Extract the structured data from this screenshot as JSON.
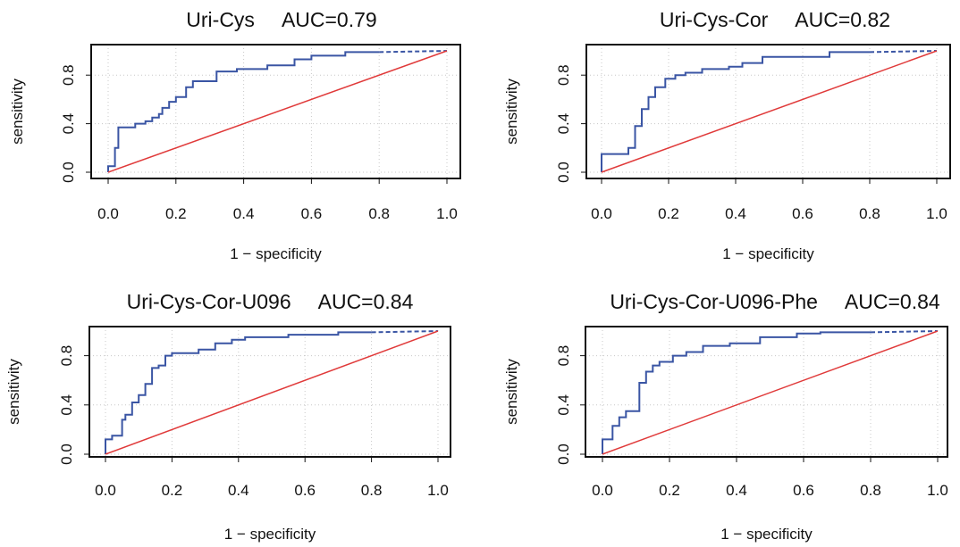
{
  "chart_data": [
    {
      "type": "line",
      "title": "Uri-Cys",
      "auc_label": "AUC=0.79",
      "xlabel": "1 − specificity",
      "ylabel": "sensitivity",
      "xlim": [
        0,
        1
      ],
      "ylim": [
        0,
        1
      ],
      "x_ticks": [
        "0.0",
        "0.2",
        "0.4",
        "0.6",
        "0.8",
        "1.0"
      ],
      "y_ticks": [
        "0.0",
        "0.4",
        "0.8"
      ],
      "grid": true,
      "series": [
        {
          "style": "roc",
          "color": "#3a55a4",
          "x": [
            0,
            0,
            0.02,
            0.02,
            0.03,
            0.03,
            0.08,
            0.08,
            0.11,
            0.11,
            0.13,
            0.13,
            0.15,
            0.15,
            0.16,
            0.16,
            0.18,
            0.18,
            0.2,
            0.2,
            0.23,
            0.23,
            0.25,
            0.25,
            0.28,
            0.28,
            0.32,
            0.32,
            0.38,
            0.38,
            0.47,
            0.47,
            0.55,
            0.55,
            0.6,
            0.6,
            0.7,
            0.7,
            0.8
          ],
          "y": [
            0,
            0.05,
            0.05,
            0.2,
            0.2,
            0.37,
            0.37,
            0.4,
            0.4,
            0.42,
            0.42,
            0.45,
            0.45,
            0.48,
            0.48,
            0.53,
            0.53,
            0.58,
            0.58,
            0.62,
            0.62,
            0.7,
            0.7,
            0.75,
            0.75,
            0.75,
            0.75,
            0.83,
            0.83,
            0.85,
            0.85,
            0.88,
            0.88,
            0.93,
            0.93,
            0.96,
            0.96,
            0.99,
            0.99
          ]
        },
        {
          "style": "dashed",
          "color": "#3a55a4",
          "x": [
            0.8,
            1.0
          ],
          "y": [
            0.99,
            1.0
          ]
        },
        {
          "style": "reference",
          "color": "#e03a3a",
          "x": [
            0,
            1
          ],
          "y": [
            0,
            1
          ]
        }
      ]
    },
    {
      "type": "line",
      "title": "Uri-Cys-Cor",
      "auc_label": "AUC=0.82",
      "xlabel": "1 − specificity",
      "ylabel": "sensitivity",
      "xlim": [
        0,
        1
      ],
      "ylim": [
        0,
        1
      ],
      "x_ticks": [
        "0.0",
        "0.2",
        "0.4",
        "0.6",
        "0.8",
        "1.0"
      ],
      "y_ticks": [
        "0.0",
        "0.4",
        "0.8"
      ],
      "grid": true,
      "series": [
        {
          "style": "roc",
          "color": "#3a55a4",
          "x": [
            0,
            0,
            0.08,
            0.08,
            0.1,
            0.1,
            0.12,
            0.12,
            0.14,
            0.14,
            0.16,
            0.16,
            0.19,
            0.19,
            0.22,
            0.22,
            0.25,
            0.25,
            0.3,
            0.3,
            0.38,
            0.38,
            0.42,
            0.42,
            0.48,
            0.48,
            0.68,
            0.68,
            0.8
          ],
          "y": [
            0,
            0.15,
            0.15,
            0.2,
            0.2,
            0.38,
            0.38,
            0.52,
            0.52,
            0.62,
            0.62,
            0.7,
            0.7,
            0.77,
            0.77,
            0.8,
            0.8,
            0.82,
            0.82,
            0.85,
            0.85,
            0.87,
            0.87,
            0.9,
            0.9,
            0.95,
            0.95,
            0.99,
            0.99
          ]
        },
        {
          "style": "dashed",
          "color": "#3a55a4",
          "x": [
            0.8,
            1.0
          ],
          "y": [
            0.99,
            1.0
          ]
        },
        {
          "style": "reference",
          "color": "#e03a3a",
          "x": [
            0,
            1
          ],
          "y": [
            0,
            1
          ]
        }
      ]
    },
    {
      "type": "line",
      "title": "Uri-Cys-Cor-U096",
      "auc_label": "AUC=0.84",
      "xlabel": "1 − specificity",
      "ylabel": "sensitivity",
      "xlim": [
        0,
        1
      ],
      "ylim": [
        0,
        1
      ],
      "x_ticks": [
        "0.0",
        "0.2",
        "0.4",
        "0.6",
        "0.8",
        "1.0"
      ],
      "y_ticks": [
        "0.0",
        "0.4",
        "0.8"
      ],
      "grid": true,
      "series": [
        {
          "style": "roc",
          "color": "#3a55a4",
          "x": [
            0,
            0,
            0.02,
            0.02,
            0.05,
            0.05,
            0.06,
            0.06,
            0.08,
            0.08,
            0.1,
            0.1,
            0.12,
            0.12,
            0.14,
            0.14,
            0.16,
            0.16,
            0.18,
            0.18,
            0.2,
            0.2,
            0.28,
            0.28,
            0.33,
            0.33,
            0.38,
            0.38,
            0.42,
            0.42,
            0.55,
            0.55,
            0.7,
            0.7,
            0.8
          ],
          "y": [
            0,
            0.12,
            0.12,
            0.15,
            0.15,
            0.28,
            0.28,
            0.32,
            0.32,
            0.42,
            0.42,
            0.48,
            0.48,
            0.57,
            0.57,
            0.7,
            0.7,
            0.72,
            0.72,
            0.8,
            0.8,
            0.82,
            0.82,
            0.85,
            0.85,
            0.9,
            0.9,
            0.93,
            0.93,
            0.95,
            0.95,
            0.97,
            0.97,
            0.99,
            0.99
          ]
        },
        {
          "style": "dashed",
          "color": "#3a55a4",
          "x": [
            0.8,
            1.0
          ],
          "y": [
            0.99,
            1.0
          ]
        },
        {
          "style": "reference",
          "color": "#e03a3a",
          "x": [
            0,
            1
          ],
          "y": [
            0,
            1
          ]
        }
      ]
    },
    {
      "type": "line",
      "title": "Uri-Cys-Cor-U096-Phe",
      "auc_label": "AUC=0.84",
      "xlabel": "1 − specificity",
      "ylabel": "sensitivity",
      "xlim": [
        0,
        1
      ],
      "ylim": [
        0,
        1
      ],
      "x_ticks": [
        "0.0",
        "0.2",
        "0.4",
        "0.6",
        "0.8",
        "1.0"
      ],
      "y_ticks": [
        "0.0",
        "0.4",
        "0.8"
      ],
      "grid": true,
      "series": [
        {
          "style": "roc",
          "color": "#3a55a4",
          "x": [
            0,
            0,
            0.03,
            0.03,
            0.05,
            0.05,
            0.07,
            0.07,
            0.11,
            0.11,
            0.13,
            0.13,
            0.15,
            0.15,
            0.17,
            0.17,
            0.21,
            0.21,
            0.25,
            0.25,
            0.3,
            0.3,
            0.38,
            0.38,
            0.47,
            0.47,
            0.58,
            0.58,
            0.65,
            0.65,
            0.8
          ],
          "y": [
            0,
            0.12,
            0.12,
            0.23,
            0.23,
            0.3,
            0.3,
            0.35,
            0.35,
            0.58,
            0.58,
            0.67,
            0.67,
            0.72,
            0.72,
            0.75,
            0.75,
            0.8,
            0.8,
            0.83,
            0.83,
            0.88,
            0.88,
            0.9,
            0.9,
            0.95,
            0.95,
            0.98,
            0.98,
            0.99,
            0.99
          ]
        },
        {
          "style": "dashed",
          "color": "#3a55a4",
          "x": [
            0.8,
            1.0
          ],
          "y": [
            0.99,
            1.0
          ]
        },
        {
          "style": "reference",
          "color": "#e03a3a",
          "x": [
            0,
            1
          ],
          "y": [
            0,
            1
          ]
        }
      ]
    }
  ]
}
